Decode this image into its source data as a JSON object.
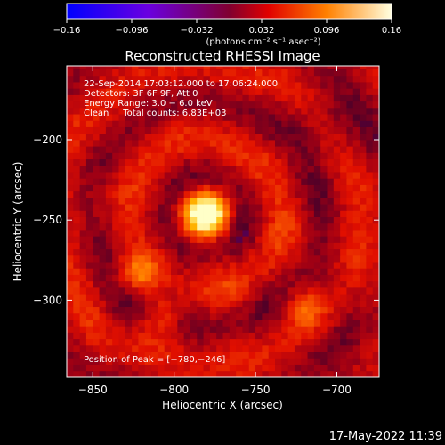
{
  "chart_data": {
    "type": "heatmap",
    "title": "Reconstructed RHESSI Image",
    "xlabel": "Heliocentric X (arcsec)",
    "ylabel": "Heliocentric Y (arcsec)",
    "xlim": [
      -866,
      -674
    ],
    "ylim": [
      -348,
      -154
    ],
    "x_ticks": [
      -850,
      -800,
      -750,
      -700
    ],
    "y_ticks": [
      -200,
      -250,
      -300
    ],
    "x_tick_labels": [
      "−850",
      "−800",
      "−750",
      "−700"
    ],
    "y_tick_labels": [
      "−200",
      "−250",
      "−300"
    ],
    "colorbar": {
      "range": [
        -0.16,
        0.16
      ],
      "ticks": [
        -0.16,
        -0.096,
        -0.032,
        0.032,
        0.096,
        0.16
      ],
      "tick_labels": [
        "−0.16",
        "−0.096",
        "−0.032",
        "0.032",
        "0.096",
        "0.16"
      ],
      "unit_label": "(photons cm⁻² s⁻¹ asec⁻²)"
    },
    "annotations": [
      "22-Sep-2014 17:03:12.000 to 17:06:24.000",
      "Detectors: 3F 6F 9F, Att 0",
      "Energy Range: 3.0 − 6.0 keV",
      "Clean     Total counts: 6.83E+03"
    ],
    "peak_label": "Position of Peak = [−780,−246]",
    "peak_position": [
      -780,
      -246
    ],
    "sources": [
      {
        "x": -780,
        "y": -246,
        "amplitude": 1.0
      },
      {
        "x": -822,
        "y": -284,
        "amplitude": 0.3
      },
      {
        "x": -808,
        "y": -310,
        "amplitude": 0.22
      },
      {
        "x": -720,
        "y": -305,
        "amplitude": 0.22
      }
    ]
  },
  "footer": {
    "timestamp": "17-May-2022 11:39"
  }
}
